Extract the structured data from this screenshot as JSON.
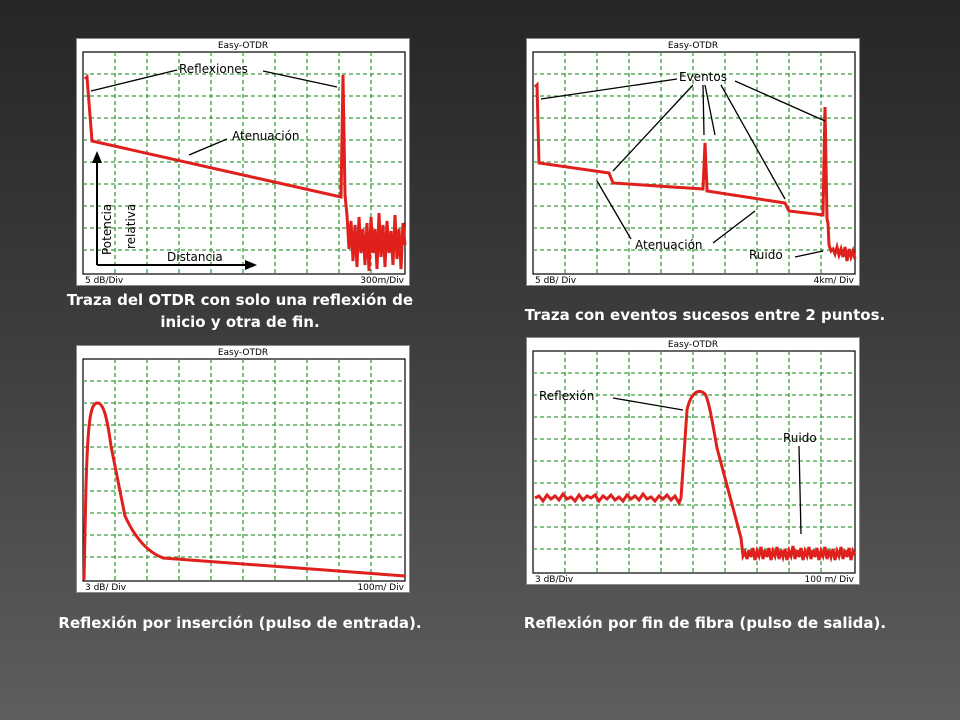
{
  "panels": [
    {
      "title": "Easy-OTDR",
      "scale_left": "5 dB/Div",
      "scale_right": "300m/Div",
      "annotations": {
        "reflexiones": "Reflexiones",
        "atenuacion": "Atenuación",
        "potencia": "Potencia",
        "relativa": "relativa",
        "distancia": "Distancia"
      }
    },
    {
      "title": "Easy-OTDR",
      "scale_left": "5 dB/ Div",
      "scale_right": "4km/ Div",
      "annotations": {
        "eventos": "Eventos",
        "atenuacion": "Atenuación",
        "ruido": "Ruido"
      }
    },
    {
      "title": "Easy-OTDR",
      "scale_left": "3 dB/ Div",
      "scale_right": "100m/ Div"
    },
    {
      "title": "Easy-OTDR",
      "scale_left": "3 dB/Div",
      "scale_right": "100 m/ Div",
      "annotations": {
        "reflexion": "Reflexión",
        "ruido": "Ruido"
      }
    }
  ],
  "captions": {
    "c1_line1": "Traza del OTDR con solo una reflexión de",
    "c1_line2": "inicio y otra de fin.",
    "c2": "Traza con eventos sucesos entre 2 puntos.",
    "c3": "Reflexión por inserción (pulso de entrada).",
    "c4": "Reflexión por fin de fibra (pulso de salida)."
  },
  "colors": {
    "trace": "#e0201c",
    "grid": "#3c9a3c",
    "background": "#2f2f2f"
  }
}
